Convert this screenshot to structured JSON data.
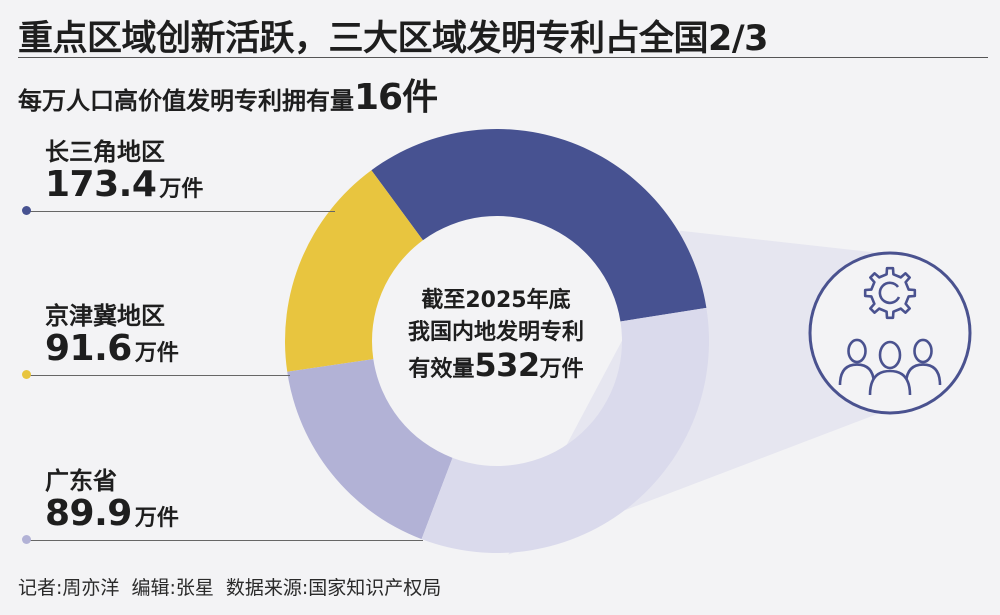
{
  "header": {
    "title": "重点区域创新活跃，三大区域发明专利占全国2/3",
    "subtitle_prefix": "每万人口高价值发明专利拥有量",
    "subtitle_value": "16件"
  },
  "center": {
    "line1": "截至2025年底",
    "line2": "我国内地发明专利",
    "line3_prefix": "有效量",
    "line3_value": "532",
    "line3_unit": "万件"
  },
  "footer": {
    "text": "记者:周亦洋  编辑:张星  数据来源:国家知识产权局"
  },
  "colors": {
    "background": "#f3f3f5",
    "yangtze": "#475291",
    "jingjinji": "#e8c53f",
    "guangdong": "#b2b2d6",
    "rest": "#dadaec",
    "callout": "#e6e6f0",
    "icon": "#4a528f"
  },
  "icon": {
    "name": "innovation-team-icon"
  },
  "chart_data": {
    "type": "pie",
    "title": "我国内地发明专利有效量532万件",
    "total": 532,
    "unit": "万件",
    "slices": [
      {
        "name": "长三角地区",
        "value": 173.4,
        "value_label": "173.4",
        "unit": "万件",
        "color": "#475291"
      },
      {
        "name": "京津冀地区",
        "value": 91.6,
        "value_label": "91.6",
        "unit": "万件",
        "color": "#e8c53f"
      },
      {
        "name": "广东省",
        "value": 89.9,
        "value_label": "89.9",
        "unit": "万件",
        "color": "#b2b2d6"
      },
      {
        "name": "",
        "value": 177.1,
        "color": "#dadaec"
      }
    ]
  }
}
